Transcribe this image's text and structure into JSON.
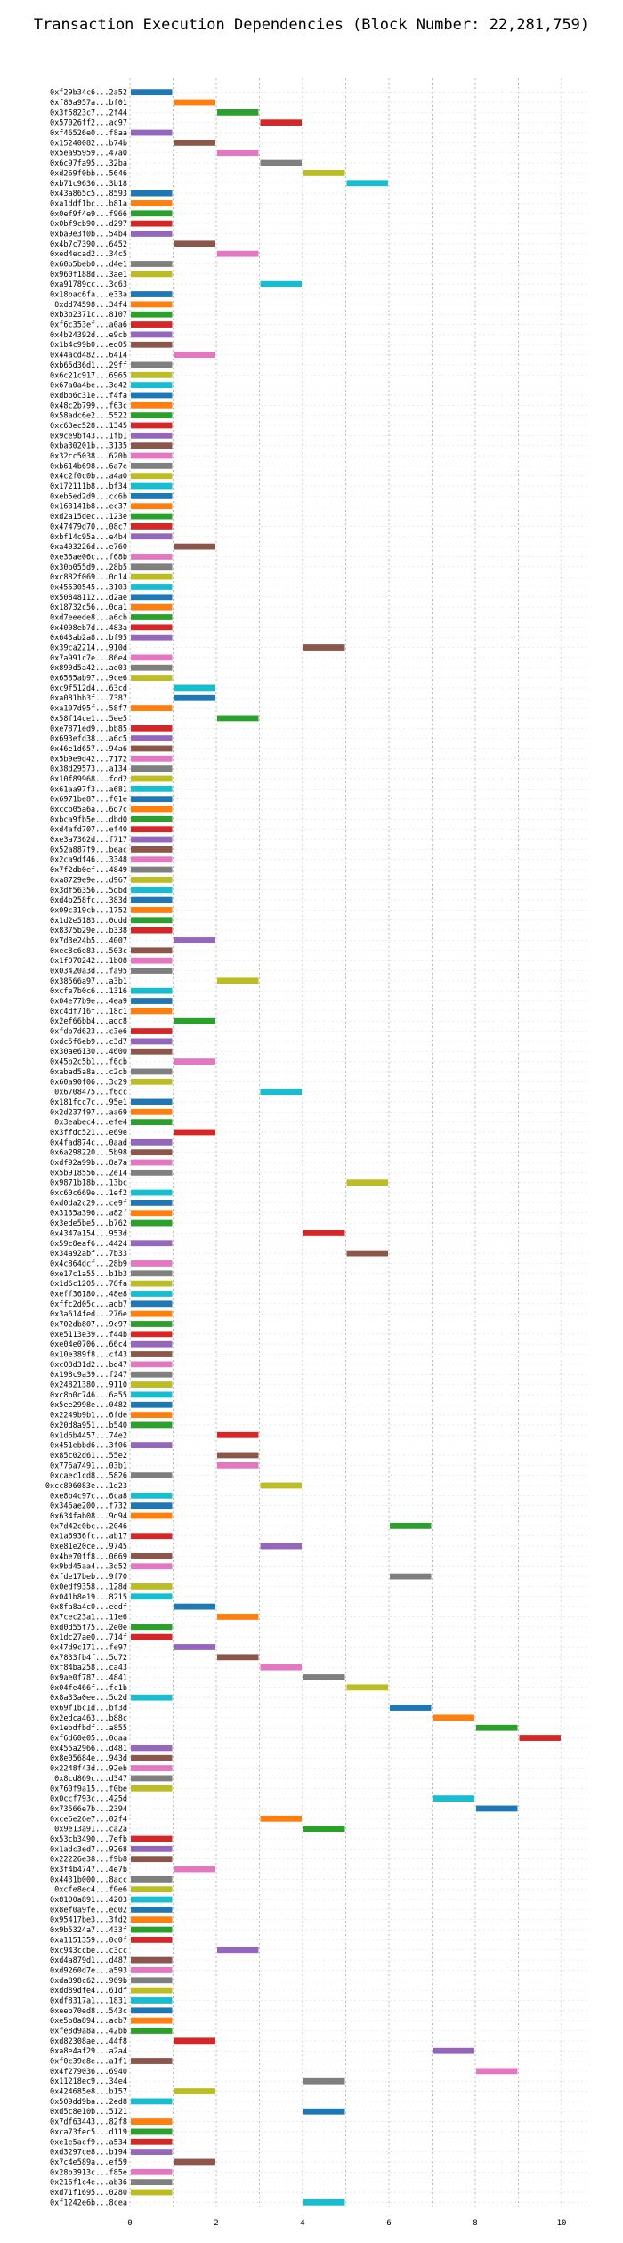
{
  "chart_data": {
    "type": "bar",
    "title": "Transaction Execution Dependencies (Block Number: 22,281,759)",
    "xlabel": "",
    "ylabel": "",
    "xlim": [
      0,
      10.6
    ],
    "xticks": [
      0,
      2,
      4,
      6,
      8,
      10
    ],
    "grid": true,
    "palette": [
      "#1f77b4",
      "#ff7f0e",
      "#2ca02c",
      "#d62728",
      "#9467bd",
      "#8c564b",
      "#e377c2",
      "#7f7f7f",
      "#bcbd22",
      "#17becf"
    ],
    "transactions": [
      {
        "label": "0xf29b34c6...2a52",
        "start": 0,
        "end": 1
      },
      {
        "label": "0xf80a957a...bf01",
        "start": 1,
        "end": 2
      },
      {
        "label": "0x3f5823c7...2f44",
        "start": 2,
        "end": 3
      },
      {
        "label": "0x57026ff2...ac97",
        "start": 3,
        "end": 4
      },
      {
        "label": "0xf46526e0...f8aa",
        "start": 0,
        "end": 1
      },
      {
        "label": "0x15240082...b74b",
        "start": 1,
        "end": 2
      },
      {
        "label": "0x5ea95959...47a0",
        "start": 2,
        "end": 3
      },
      {
        "label": "0x6c97fa95...32ba",
        "start": 3,
        "end": 4
      },
      {
        "label": "0xd269f0bb...5646",
        "start": 4,
        "end": 5
      },
      {
        "label": "0xb71c9636...3b18",
        "start": 5,
        "end": 6
      },
      {
        "label": "0x43a865c5...8593",
        "start": 0,
        "end": 1
      },
      {
        "label": "0xa1ddf1bc...b81a",
        "start": 0,
        "end": 1
      },
      {
        "label": "0x0ef9f4e9...f966",
        "start": 0,
        "end": 1
      },
      {
        "label": "0x0bf9cb90...d297",
        "start": 0,
        "end": 1
      },
      {
        "label": "0xba9e3f0b...54b4",
        "start": 0,
        "end": 1
      },
      {
        "label": "0x4b7c7390...6452",
        "start": 1,
        "end": 2
      },
      {
        "label": "0xed4ecad2...34c5",
        "start": 2,
        "end": 3
      },
      {
        "label": "0x60b5beb0...d4e1",
        "start": 0,
        "end": 1
      },
      {
        "label": "0x960f188d...3ae1",
        "start": 0,
        "end": 1
      },
      {
        "label": "0xa91789cc...3c63",
        "start": 3,
        "end": 4
      },
      {
        "label": "0x18bac6fa...e33a",
        "start": 0,
        "end": 1
      },
      {
        "label": "0xdd74598...34f4",
        "start": 0,
        "end": 1
      },
      {
        "label": "0xb3b2371c...8107",
        "start": 0,
        "end": 1
      },
      {
        "label": "0xf6c353ef...a0a6",
        "start": 0,
        "end": 1
      },
      {
        "label": "0x4b24392d...e9cb",
        "start": 0,
        "end": 1
      },
      {
        "label": "0x1b4c99b0...ed05",
        "start": 0,
        "end": 1
      },
      {
        "label": "0x44acd482...6414",
        "start": 1,
        "end": 2
      },
      {
        "label": "0xb65d36d1...29ff",
        "start": 0,
        "end": 1
      },
      {
        "label": "0x6c21c917...6965",
        "start": 0,
        "end": 1
      },
      {
        "label": "0x67a0a4be...3d42",
        "start": 0,
        "end": 1
      },
      {
        "label": "0xdbb6c31e...f4fa",
        "start": 0,
        "end": 1
      },
      {
        "label": "0x48c2b799...f63c",
        "start": 0,
        "end": 1
      },
      {
        "label": "0x58adc6e2...5522",
        "start": 0,
        "end": 1
      },
      {
        "label": "0xc63ec528...1345",
        "start": 0,
        "end": 1
      },
      {
        "label": "0x9ce9bf43...1fb1",
        "start": 0,
        "end": 1
      },
      {
        "label": "0xba30201b...3135",
        "start": 0,
        "end": 1
      },
      {
        "label": "0x32cc5038...620b",
        "start": 0,
        "end": 1
      },
      {
        "label": "0xb614b698...6a7e",
        "start": 0,
        "end": 1
      },
      {
        "label": "0x4c2f0c0b...a4a0",
        "start": 0,
        "end": 1
      },
      {
        "label": "0x172111b8...bf34",
        "start": 0,
        "end": 1
      },
      {
        "label": "0xeb5ed2d9...cc6b",
        "start": 0,
        "end": 1
      },
      {
        "label": "0x163141b8...ec37",
        "start": 0,
        "end": 1
      },
      {
        "label": "0xd2a15dec...123e",
        "start": 0,
        "end": 1
      },
      {
        "label": "0x47479d70...08c7",
        "start": 0,
        "end": 1
      },
      {
        "label": "0xbf14c95a...e4b4",
        "start": 0,
        "end": 1
      },
      {
        "label": "0xa403226d...e760",
        "start": 1,
        "end": 2
      },
      {
        "label": "0xe36ae06c...f68b",
        "start": 0,
        "end": 1
      },
      {
        "label": "0x30b055d9...28b5",
        "start": 0,
        "end": 1
      },
      {
        "label": "0xc882f069...0d14",
        "start": 0,
        "end": 1
      },
      {
        "label": "0x45530545...3103",
        "start": 0,
        "end": 1
      },
      {
        "label": "0x50848112...d2ae",
        "start": 0,
        "end": 1
      },
      {
        "label": "0x18732c56...0da1",
        "start": 0,
        "end": 1
      },
      {
        "label": "0xd7eeede8...a6cb",
        "start": 0,
        "end": 1
      },
      {
        "label": "0x4008eb7d...483a",
        "start": 0,
        "end": 1
      },
      {
        "label": "0x643ab2a8...bf95",
        "start": 0,
        "end": 1
      },
      {
        "label": "0x39ca2214...910d",
        "start": 4,
        "end": 5
      },
      {
        "label": "0x7a991c7e...86e4",
        "start": 0,
        "end": 1
      },
      {
        "label": "0x890d5a42...ae03",
        "start": 0,
        "end": 1
      },
      {
        "label": "0x6585ab97...9ce6",
        "start": 0,
        "end": 1
      },
      {
        "label": "0xc9f512d4...63cd",
        "start": 1,
        "end": 2
      },
      {
        "label": "0xa081bb3f...7387",
        "start": 1,
        "end": 2
      },
      {
        "label": "0xa107d95f...58f7",
        "start": 0,
        "end": 1
      },
      {
        "label": "0x58f14ce1...5ee5",
        "start": 2,
        "end": 3
      },
      {
        "label": "0xe7871ed9...bb85",
        "start": 0,
        "end": 1
      },
      {
        "label": "0x693efd38...a6c5",
        "start": 0,
        "end": 1
      },
      {
        "label": "0x46e1d657...94a6",
        "start": 0,
        "end": 1
      },
      {
        "label": "0x5b9e9d42...7172",
        "start": 0,
        "end": 1
      },
      {
        "label": "0x38d29573...a134",
        "start": 0,
        "end": 1
      },
      {
        "label": "0x10f89968...fdd2",
        "start": 0,
        "end": 1
      },
      {
        "label": "0x61aa97f3...a681",
        "start": 0,
        "end": 1
      },
      {
        "label": "0x6971be87...f01e",
        "start": 0,
        "end": 1
      },
      {
        "label": "0xccb05a6a...6d7c",
        "start": 0,
        "end": 1
      },
      {
        "label": "0xbca9fb5e...dbd0",
        "start": 0,
        "end": 1
      },
      {
        "label": "0xd4afd707...ef40",
        "start": 0,
        "end": 1
      },
      {
        "label": "0xe3a7362d...f717",
        "start": 0,
        "end": 1
      },
      {
        "label": "0x52a887f9...beac",
        "start": 0,
        "end": 1
      },
      {
        "label": "0x2ca9df46...3348",
        "start": 0,
        "end": 1
      },
      {
        "label": "0x7f2db0ef...4849",
        "start": 0,
        "end": 1
      },
      {
        "label": "0xa8729e9e...d967",
        "start": 0,
        "end": 1
      },
      {
        "label": "0x3df56356...5dbd",
        "start": 0,
        "end": 1
      },
      {
        "label": "0xd4b258fc...383d",
        "start": 0,
        "end": 1
      },
      {
        "label": "0x09c319cb...1752",
        "start": 0,
        "end": 1
      },
      {
        "label": "0x1d2e5183...0ddd",
        "start": 0,
        "end": 1
      },
      {
        "label": "0x8375b29e...b338",
        "start": 0,
        "end": 1
      },
      {
        "label": "0x7d3e24b5...4007",
        "start": 1,
        "end": 2
      },
      {
        "label": "0xec8c6e83...503c",
        "start": 0,
        "end": 1
      },
      {
        "label": "0x1f070242...1b08",
        "start": 0,
        "end": 1
      },
      {
        "label": "0x03420a3d...fa95",
        "start": 0,
        "end": 1
      },
      {
        "label": "0x38566a97...a3b1",
        "start": 2,
        "end": 3
      },
      {
        "label": "0xcfe7b0c6...1316",
        "start": 0,
        "end": 1
      },
      {
        "label": "0x04e77b9e...4ea9",
        "start": 0,
        "end": 1
      },
      {
        "label": "0xc4df716f...18c1",
        "start": 0,
        "end": 1
      },
      {
        "label": "0x2ef66bb4...adc8",
        "start": 1,
        "end": 2
      },
      {
        "label": "0xfdb7d623...c3e6",
        "start": 0,
        "end": 1
      },
      {
        "label": "0xdc5f6eb9...c3d7",
        "start": 0,
        "end": 1
      },
      {
        "label": "0x30ae6130...4600",
        "start": 0,
        "end": 1
      },
      {
        "label": "0x45b2c5b1...f6cb",
        "start": 1,
        "end": 2
      },
      {
        "label": "0xabad5a8a...c2cb",
        "start": 0,
        "end": 1
      },
      {
        "label": "0x60a90f06...3c29",
        "start": 0,
        "end": 1
      },
      {
        "label": "0x6708475...f6cc",
        "start": 3,
        "end": 4
      },
      {
        "label": "0x181fcc7c...95e1",
        "start": 0,
        "end": 1
      },
      {
        "label": "0x2d237f97...aa69",
        "start": 0,
        "end": 1
      },
      {
        "label": "0x3eabec4...efe4",
        "start": 0,
        "end": 1
      },
      {
        "label": "0x3ffdc521...e69e",
        "start": 1,
        "end": 2
      },
      {
        "label": "0x4fad874c...0aad",
        "start": 0,
        "end": 1
      },
      {
        "label": "0x6a298220...5b98",
        "start": 0,
        "end": 1
      },
      {
        "label": "0xdf92a99b...8a7a",
        "start": 0,
        "end": 1
      },
      {
        "label": "0x5b918556...2e14",
        "start": 0,
        "end": 1
      },
      {
        "label": "0x9871b18b...13bc",
        "start": 5,
        "end": 6
      },
      {
        "label": "0xc60c669e...1ef2",
        "start": 0,
        "end": 1
      },
      {
        "label": "0xd0da2c29...ce9f",
        "start": 0,
        "end": 1
      },
      {
        "label": "0x3135a396...a82f",
        "start": 0,
        "end": 1
      },
      {
        "label": "0x3ede5be5...b762",
        "start": 0,
        "end": 1
      },
      {
        "label": "0x4347a154...953d",
        "start": 4,
        "end": 5
      },
      {
        "label": "0x59c8eaf6...4424",
        "start": 0,
        "end": 1
      },
      {
        "label": "0x34a92abf...7b33",
        "start": 5,
        "end": 6
      },
      {
        "label": "0x4c864dcf...28b9",
        "start": 0,
        "end": 1
      },
      {
        "label": "0xe17c1a55...b1b3",
        "start": 0,
        "end": 1
      },
      {
        "label": "0x1d6c1205...78fa",
        "start": 0,
        "end": 1
      },
      {
        "label": "0xeff36180...48e8",
        "start": 0,
        "end": 1
      },
      {
        "label": "0xffc2d05c...adb7",
        "start": 0,
        "end": 1
      },
      {
        "label": "0x3a614fed...276e",
        "start": 0,
        "end": 1
      },
      {
        "label": "0x702db807...9c97",
        "start": 0,
        "end": 1
      },
      {
        "label": "0xe5113e39...f44b",
        "start": 0,
        "end": 1
      },
      {
        "label": "0xe04e0706...66c4",
        "start": 0,
        "end": 1
      },
      {
        "label": "0x10e389f8...cf43",
        "start": 0,
        "end": 1
      },
      {
        "label": "0xc08d31d2...bd47",
        "start": 0,
        "end": 1
      },
      {
        "label": "0x198c9a39...f247",
        "start": 0,
        "end": 1
      },
      {
        "label": "0x24821380...9110",
        "start": 0,
        "end": 1
      },
      {
        "label": "0xc8b0c746...6a55",
        "start": 0,
        "end": 1
      },
      {
        "label": "0x5ee2998e...0482",
        "start": 0,
        "end": 1
      },
      {
        "label": "0x2249b9b1...6fde",
        "start": 0,
        "end": 1
      },
      {
        "label": "0x20d8a951...b540",
        "start": 0,
        "end": 1
      },
      {
        "label": "0x1d6b4457...74e2",
        "start": 2,
        "end": 3
      },
      {
        "label": "0x451ebbd6...3f06",
        "start": 0,
        "end": 1
      },
      {
        "label": "0x85c02d61...55e2",
        "start": 2,
        "end": 3
      },
      {
        "label": "0x776a7491...03b1",
        "start": 2,
        "end": 3
      },
      {
        "label": "0xcaec1cd8...5826",
        "start": 0,
        "end": 1
      },
      {
        "label": "0xcc806083e...1d23",
        "start": 3,
        "end": 4
      },
      {
        "label": "0xe8b4c97c...6ca8",
        "start": 0,
        "end": 1
      },
      {
        "label": "0x346ae200...f732",
        "start": 0,
        "end": 1
      },
      {
        "label": "0x634fab08...9d94",
        "start": 0,
        "end": 1
      },
      {
        "label": "0x7d42c0bc...2046",
        "start": 6,
        "end": 7
      },
      {
        "label": "0x1a6936fc...ab17",
        "start": 0,
        "end": 1
      },
      {
        "label": "0xe81e20ce...9745",
        "start": 3,
        "end": 4
      },
      {
        "label": "0x4be70ff8...0669",
        "start": 0,
        "end": 1
      },
      {
        "label": "0x9bd45aa4...3d52",
        "start": 0,
        "end": 1
      },
      {
        "label": "0xfde17beb...9f70",
        "start": 6,
        "end": 7
      },
      {
        "label": "0x0edf9358...128d",
        "start": 0,
        "end": 1
      },
      {
        "label": "0x041b8e19...8215",
        "start": 0,
        "end": 1
      },
      {
        "label": "0x8fa8a4c0...eedf",
        "start": 1,
        "end": 2
      },
      {
        "label": "0x7cec23a1...11e6",
        "start": 2,
        "end": 3
      },
      {
        "label": "0xd0d55f75...2e0e",
        "start": 0,
        "end": 1
      },
      {
        "label": "0x1dc27ae0...714f",
        "start": 0,
        "end": 1
      },
      {
        "label": "0x47d9c171...fe97",
        "start": 1,
        "end": 2
      },
      {
        "label": "0x7833fb4f...5d72",
        "start": 2,
        "end": 3
      },
      {
        "label": "0xf84ba258...ca43",
        "start": 3,
        "end": 4
      },
      {
        "label": "0x9ae0f787...4841",
        "start": 4,
        "end": 5
      },
      {
        "label": "0x04fe466f...fc1b",
        "start": 5,
        "end": 6
      },
      {
        "label": "0x8a33a0ee...5d2d",
        "start": 0,
        "end": 1
      },
      {
        "label": "0x69f1bc1d...bf3d",
        "start": 6,
        "end": 7
      },
      {
        "label": "0x2edca463...b88c",
        "start": 7,
        "end": 8
      },
      {
        "label": "0x1ebdfbdf...a855",
        "start": 8,
        "end": 9
      },
      {
        "label": "0xf6d60e05...0daa",
        "start": 9,
        "end": 10
      },
      {
        "label": "0x455a2966...d481",
        "start": 0,
        "end": 1
      },
      {
        "label": "0x8e05684e...943d",
        "start": 0,
        "end": 1
      },
      {
        "label": "0x2248f43d...92eb",
        "start": 0,
        "end": 1
      },
      {
        "label": "0x8cd869c...d347",
        "start": 0,
        "end": 1
      },
      {
        "label": "0x760f9a15...f0be",
        "start": 0,
        "end": 1
      },
      {
        "label": "0x0ccf793c...425d",
        "start": 7,
        "end": 8
      },
      {
        "label": "0x73566e7b...2394",
        "start": 8,
        "end": 9
      },
      {
        "label": "0xce6e26e7...02f4",
        "start": 3,
        "end": 4
      },
      {
        "label": "0x9e13a91...ca2a",
        "start": 4,
        "end": 5
      },
      {
        "label": "0x53cb3490...7efb",
        "start": 0,
        "end": 1
      },
      {
        "label": "0x1adc3ed7...9268",
        "start": 0,
        "end": 1
      },
      {
        "label": "0x22226e38...f9b8",
        "start": 0,
        "end": 1
      },
      {
        "label": "0x3f4b4747...4e7b",
        "start": 1,
        "end": 2
      },
      {
        "label": "0x4431b000...8acc",
        "start": 0,
        "end": 1
      },
      {
        "label": "0xcfe8ec4...f0e6",
        "start": 0,
        "end": 1
      },
      {
        "label": "0x8100a891...4203",
        "start": 0,
        "end": 1
      },
      {
        "label": "0x8ef0a9fe...ed02",
        "start": 0,
        "end": 1
      },
      {
        "label": "0x95417be3...3fd2",
        "start": 0,
        "end": 1
      },
      {
        "label": "0x9b5324a7...433f",
        "start": 0,
        "end": 1
      },
      {
        "label": "0xa1151359...0c0f",
        "start": 0,
        "end": 1
      },
      {
        "label": "0xc943ccbe...c3cc",
        "start": 2,
        "end": 3
      },
      {
        "label": "0xd4a879d1...d487",
        "start": 0,
        "end": 1
      },
      {
        "label": "0xd9260d7e...a593",
        "start": 0,
        "end": 1
      },
      {
        "label": "0xda898c62...969b",
        "start": 0,
        "end": 1
      },
      {
        "label": "0xdd89dfe4...61df",
        "start": 0,
        "end": 1
      },
      {
        "label": "0xdf8317a1...1831",
        "start": 0,
        "end": 1
      },
      {
        "label": "0xeeb70ed8...543c",
        "start": 0,
        "end": 1
      },
      {
        "label": "0xe5b8a894...acb7",
        "start": 0,
        "end": 1
      },
      {
        "label": "0xfe8d9a8a...42bb",
        "start": 0,
        "end": 1
      },
      {
        "label": "0xd82308ae...44f8",
        "start": 1,
        "end": 2
      },
      {
        "label": "0xa8e4af29...a2a4",
        "start": 7,
        "end": 8
      },
      {
        "label": "0xf0c39e8e...a1f1",
        "start": 0,
        "end": 1
      },
      {
        "label": "0x4f279036...6940",
        "start": 8,
        "end": 9
      },
      {
        "label": "0x11218ec9...34e4",
        "start": 4,
        "end": 5
      },
      {
        "label": "0x424685e8...b157",
        "start": 1,
        "end": 2
      },
      {
        "label": "0x509dd9ba...2ed8",
        "start": 0,
        "end": 1
      },
      {
        "label": "0xd5c8e10b...5121",
        "start": 4,
        "end": 5
      },
      {
        "label": "0x7df63443...82f8",
        "start": 0,
        "end": 1
      },
      {
        "label": "0xca73fec5...d119",
        "start": 0,
        "end": 1
      },
      {
        "label": "0xe1e5acf9...a534",
        "start": 0,
        "end": 1
      },
      {
        "label": "0xd3297ce8...b194",
        "start": 0,
        "end": 1
      },
      {
        "label": "0x7c4e589a...ef59",
        "start": 1,
        "end": 2
      },
      {
        "label": "0x28b3913c...f85e",
        "start": 0,
        "end": 1
      },
      {
        "label": "0x216f1c4e...ab36",
        "start": 0,
        "end": 1
      },
      {
        "label": "0xd71f1695...0280",
        "start": 0,
        "end": 1
      },
      {
        "label": "0xf1242e6b...8cea",
        "start": 4,
        "end": 5
      }
    ]
  }
}
